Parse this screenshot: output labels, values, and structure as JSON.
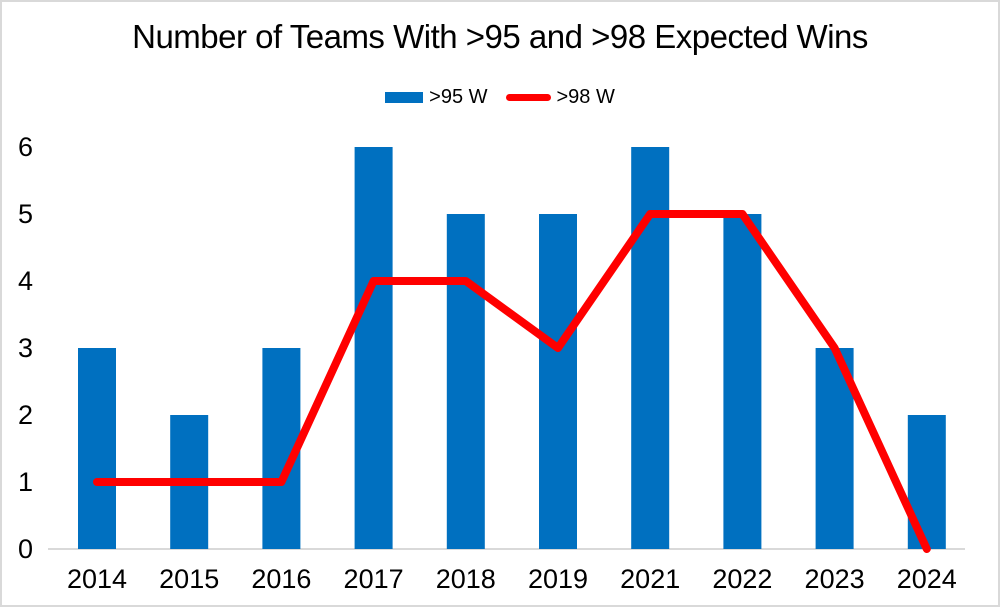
{
  "chart": {
    "title": "Number of Teams With >95 and >98 Expected Wins"
  },
  "colors": {
    "bar": "#0070C0",
    "line": "#FF0000",
    "axis": "#D9D9D9",
    "text": "#000000",
    "border": "#D9D9D9",
    "background": "#FFFFFF"
  },
  "chart_data": {
    "type": "bar",
    "title": "Number of Teams With >95 and >98 Expected Wins",
    "categories": [
      "2014",
      "2015",
      "2016",
      "2017",
      "2018",
      "2019",
      "2021",
      "2022",
      "2023",
      "2024"
    ],
    "series": [
      {
        "name": ">95 W",
        "type": "bar",
        "color": "#0070C0",
        "values": [
          3,
          2,
          3,
          6,
          5,
          5,
          6,
          5,
          3,
          2
        ]
      },
      {
        "name": ">98 W",
        "type": "line",
        "color": "#FF0000",
        "values": [
          1,
          1,
          1,
          4,
          4,
          3,
          5,
          5,
          3,
          0
        ]
      }
    ],
    "xlabel": "",
    "ylabel": "",
    "ylim": [
      0,
      6
    ],
    "yticks": [
      0,
      1,
      2,
      3,
      4,
      5,
      6
    ],
    "grid": false,
    "legend_position": "top-center"
  }
}
